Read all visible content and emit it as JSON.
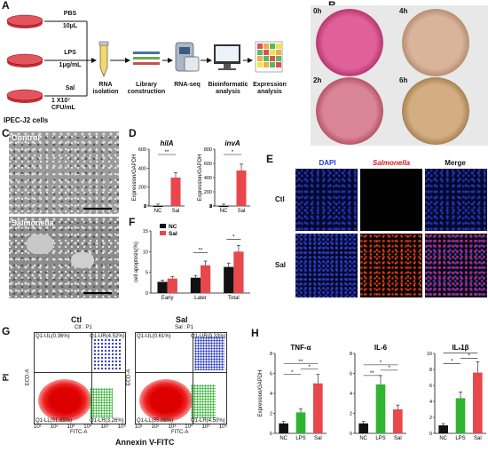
{
  "panel_labels": [
    "A",
    "B",
    "C",
    "D",
    "E",
    "F",
    "G",
    "H"
  ],
  "panel_a": {
    "treatments": [
      {
        "name": "PBS",
        "dose": "10μL"
      },
      {
        "name": "LPS",
        "dose": "1μg/mL"
      },
      {
        "name": "Sal",
        "dose": "1 X10⁷ CFU/mL"
      }
    ],
    "cells": "IPEC-J2 cells",
    "steps": [
      "RNA isolation",
      "Library construction",
      "RNA-seq",
      "Bioinformatic analysis",
      "Expression analysis"
    ]
  },
  "panel_b": {
    "times": [
      "0h",
      "4h",
      "2h",
      "6h"
    ]
  },
  "panel_c": {
    "labels": [
      "Control",
      "Salmonella"
    ]
  },
  "panel_e": {
    "columns": [
      "DAPI",
      "Salmonella",
      "Merge"
    ],
    "rows": [
      "Ctl",
      "Sal"
    ]
  },
  "panel_g": {
    "titles": [
      "Ctl",
      "Sal"
    ],
    "subtitles": [
      "Ctl : P1",
      "Sal : P1"
    ],
    "ylabel": "PI",
    "xlabel": "Annexin V-FITC",
    "axis_y": "ECD-A",
    "axis_x": "FITC-A",
    "ctl_quadrants": [
      "Q1-UL(0.36%)",
      "Q1-UR(4.52%)",
      "Q1-LL(91.85%)",
      "Q1-LR(3.26%)"
    ],
    "sal_quadrants": [
      "Q1-UL(0.61%)",
      "Q1-UR(9.33%)",
      "Q1-LL(85.06%)",
      "Q1-LR(4.50%)"
    ],
    "ticks": [
      "10¹",
      "10²",
      "10³",
      "10⁴",
      "10⁵",
      "10⁶"
    ]
  },
  "chart_data": [
    {
      "type": "bar",
      "panel": "D-left",
      "title": "hilA",
      "ylabel": "Expression/GAPDH",
      "categories": [
        "NC",
        "Sal"
      ],
      "values": [
        1,
        300
      ],
      "ylim": [
        0,
        600
      ],
      "yticks": [
        "0",
        "1",
        "2",
        "200",
        "400",
        "600"
      ],
      "significance": "**"
    },
    {
      "type": "bar",
      "panel": "D-right",
      "title": "invA",
      "ylabel": "Expression/GAPDH",
      "categories": [
        "NC",
        "Sal"
      ],
      "values": [
        1,
        500
      ],
      "ylim": [
        0,
        800
      ],
      "yticks": [
        "0",
        "1",
        "2",
        "3",
        "200",
        "400",
        "600",
        "800"
      ],
      "significance": "*"
    },
    {
      "type": "bar",
      "panel": "F",
      "ylabel": "cell apoptosis(%)",
      "categories": [
        "Early",
        "Later",
        "Total"
      ],
      "series": [
        {
          "name": "NC",
          "values": [
            2.7,
            3.7,
            6.3
          ],
          "color": "#111111"
        },
        {
          "name": "Sal",
          "values": [
            3.5,
            6.7,
            10.0
          ],
          "color": "#e8474b"
        }
      ],
      "ylim": [
        0,
        15
      ],
      "yticks": [
        "0",
        "5",
        "10",
        "15"
      ],
      "significance": [
        "",
        "**",
        "*"
      ]
    },
    {
      "type": "bar",
      "panel": "H-1",
      "title": "TNF-α",
      "ylabel": "Expression/GAPDH",
      "categories": [
        "NC",
        "LPS",
        "Sal"
      ],
      "values": [
        1.0,
        2.1,
        5.0
      ],
      "colors": [
        "#111111",
        "#2fb52f",
        "#e8474b"
      ],
      "ylim": [
        0,
        8
      ],
      "yticks": [
        "0",
        "2",
        "4",
        "6",
        "8"
      ]
    },
    {
      "type": "bar",
      "panel": "H-2",
      "title": "IL-6",
      "ylabel": "",
      "categories": [
        "NC",
        "LPS",
        "Sal"
      ],
      "values": [
        1.0,
        4.9,
        2.4
      ],
      "colors": [
        "#111111",
        "#2fb52f",
        "#e8474b"
      ],
      "ylim": [
        0,
        8
      ],
      "yticks": [
        "0",
        "2",
        "4",
        "6",
        "8"
      ]
    },
    {
      "type": "bar",
      "panel": "H-3",
      "title": "IL-1β",
      "ylabel": "",
      "categories": [
        "NC",
        "LPS",
        "Sal"
      ],
      "values": [
        1.0,
        4.4,
        7.6
      ],
      "colors": [
        "#111111",
        "#2fb52f",
        "#e8474b"
      ],
      "ylim": [
        0,
        10
      ],
      "yticks": [
        "0",
        "2",
        "4",
        "6",
        "8",
        "10"
      ]
    }
  ]
}
